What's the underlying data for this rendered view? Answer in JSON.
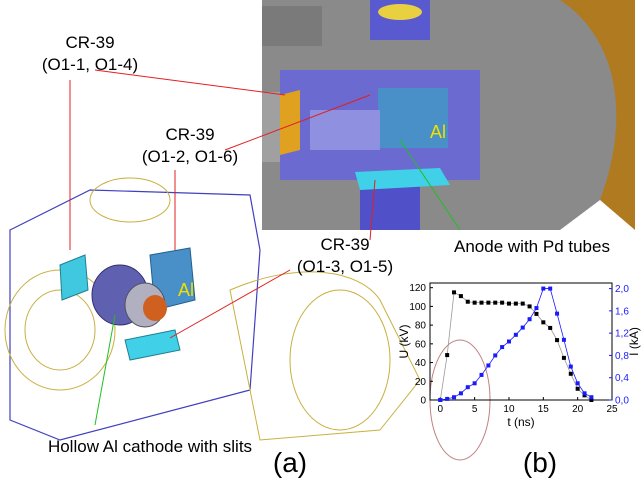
{
  "callouts": [
    {
      "title": "CR-39",
      "detail": "(O1-1, O1-4)"
    },
    {
      "title": "CR-39",
      "detail": "(O1-2, O1-6)"
    },
    {
      "title": "CR-39",
      "detail": "(O1-3, O1-5)"
    }
  ],
  "al_labels": [
    "Al",
    "Al"
  ],
  "anode_label": "Anode with Pd tubes",
  "cathode_label": "Hollow Al cathode with slits",
  "panel_labels": [
    "(a)",
    "(b)"
  ],
  "chart_data": {
    "type": "line",
    "xlabel": "t (ns)",
    "ylabel": "U (kV)",
    "y2label": "I (kA)",
    "x": [
      0,
      1,
      2,
      3,
      4,
      5,
      6,
      7,
      8,
      9,
      10,
      11,
      12,
      13,
      14,
      15,
      16,
      17,
      18,
      19,
      20,
      21,
      22
    ],
    "series": [
      {
        "color": "#000000",
        "values": [
          0,
          48,
          115,
          111,
          105,
          104,
          104,
          104,
          104,
          104,
          103,
          103,
          103,
          100,
          92,
          83,
          77,
          64,
          45,
          28,
          12,
          5,
          0
        ]
      },
      {
        "color": "#1a1aff",
        "axis": "y2",
        "values": [
          0,
          0.02,
          0.05,
          0.12,
          0.23,
          0.3,
          0.45,
          0.62,
          0.8,
          0.95,
          1.05,
          1.17,
          1.3,
          1.45,
          1.65,
          2.0,
          2.0,
          1.55,
          1.08,
          0.6,
          0.3,
          0.12,
          0.05
        ]
      }
    ],
    "xlim": [
      -1.5,
      25
    ],
    "xticks": [
      0,
      5,
      10,
      15,
      20,
      25
    ],
    "ylim": [
      0,
      125
    ],
    "yticks": [
      0,
      20,
      40,
      60,
      80,
      100,
      120
    ],
    "y2lim": [
      0,
      2.1
    ],
    "y2ticks": [
      {
        "value": 0,
        "label": "0,0"
      },
      {
        "value": 0.4,
        "label": "0,4"
      },
      {
        "value": 0.8,
        "label": "0,8"
      },
      {
        "value": 1.2,
        "label": "1,2"
      },
      {
        "value": 1.6,
        "label": "1,6"
      },
      {
        "value": 2.0,
        "label": "2,0"
      }
    ]
  }
}
